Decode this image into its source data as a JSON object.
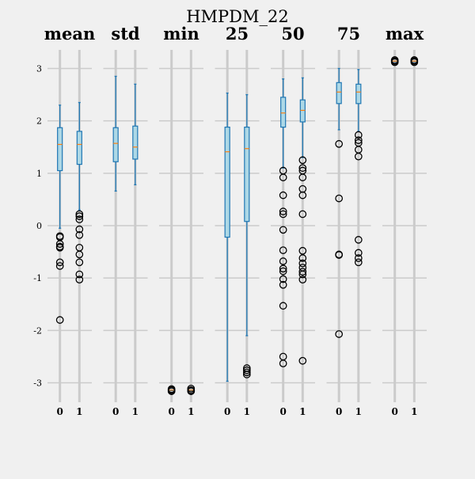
{
  "chart_data": {
    "type": "box",
    "title": "HMPDM_22",
    "ylim": [
      -3.4,
      3.4
    ],
    "yticks": [
      -3,
      -2,
      -1,
      0,
      1,
      2,
      3
    ],
    "grid": true,
    "colors": {
      "background": "#f0f0f0",
      "grid": "#cbcbcb",
      "box_fill": "#add8e6",
      "box_edge": "#1f77b4",
      "median": "#ff7f0e",
      "outlier": "#000000"
    },
    "panels": [
      {
        "name": "mean",
        "groups": [
          {
            "label": "0",
            "whislo": -0.05,
            "q1": 1.05,
            "med": 1.55,
            "q3": 1.87,
            "whishi": 2.3,
            "fliers": [
              -0.2,
              -0.22,
              -0.35,
              -0.4,
              -0.42,
              -0.7,
              -0.77,
              -1.8
            ]
          },
          {
            "label": "1",
            "whislo": 0.3,
            "q1": 1.17,
            "med": 1.55,
            "q3": 1.8,
            "whishi": 2.35,
            "fliers": [
              0.22,
              0.18,
              0.12,
              -0.07,
              -0.18,
              -0.42,
              -0.55,
              -0.7,
              -0.93,
              -1.03
            ]
          }
        ]
      },
      {
        "name": "std",
        "groups": [
          {
            "label": "0",
            "whislo": 0.66,
            "q1": 1.22,
            "med": 1.57,
            "q3": 1.87,
            "whishi": 2.85,
            "fliers": []
          },
          {
            "label": "1",
            "whislo": 0.78,
            "q1": 1.27,
            "med": 1.5,
            "q3": 1.9,
            "whishi": 2.7,
            "fliers": []
          }
        ]
      },
      {
        "name": "min",
        "groups": [
          {
            "label": "0",
            "whislo": -3.14,
            "q1": -3.14,
            "med": -3.14,
            "q3": -3.14,
            "whishi": -3.14,
            "fliers": [
              -3.12,
              -3.14,
              -3.16
            ]
          },
          {
            "label": "1",
            "whislo": -3.14,
            "q1": -3.14,
            "med": -3.14,
            "q3": -3.14,
            "whishi": -3.14,
            "fliers": [
              -3.11,
              -3.14,
              -3.16
            ]
          }
        ]
      },
      {
        "name": "25",
        "groups": [
          {
            "label": "0",
            "whislo": -2.97,
            "q1": -0.22,
            "med": 1.41,
            "q3": 1.88,
            "whishi": 2.53,
            "fliers": []
          },
          {
            "label": "1",
            "whislo": -2.1,
            "q1": 0.08,
            "med": 1.47,
            "q3": 1.88,
            "whishi": 2.5,
            "fliers": [
              -2.72,
              -2.76,
              -2.8,
              -2.84
            ]
          }
        ]
      },
      {
        "name": "50",
        "groups": [
          {
            "label": "0",
            "whislo": 1.1,
            "q1": 1.88,
            "med": 2.15,
            "q3": 2.45,
            "whishi": 2.8,
            "fliers": [
              1.05,
              0.92,
              0.58,
              0.27,
              0.22,
              -0.08,
              -0.47,
              -0.68,
              -0.82,
              -0.87,
              -1.02,
              -1.13,
              -1.53,
              -2.5,
              -2.63
            ]
          },
          {
            "label": "1",
            "whislo": 1.3,
            "q1": 1.98,
            "med": 2.2,
            "q3": 2.4,
            "whishi": 2.82,
            "fliers": [
              1.25,
              1.1,
              1.05,
              0.92,
              0.7,
              0.58,
              0.22,
              -0.48,
              -0.62,
              -0.72,
              -0.8,
              -0.88,
              -0.93,
              -1.03,
              -2.58
            ]
          }
        ]
      },
      {
        "name": "75",
        "groups": [
          {
            "label": "0",
            "whislo": 1.83,
            "q1": 2.33,
            "med": 2.55,
            "q3": 2.73,
            "whishi": 3.0,
            "fliers": [
              1.56,
              0.52,
              -0.55,
              -0.56,
              -2.07
            ]
          },
          {
            "label": "1",
            "whislo": 1.8,
            "q1": 2.33,
            "med": 2.55,
            "q3": 2.7,
            "whishi": 2.98,
            "fliers": [
              1.73,
              1.63,
              1.58,
              1.45,
              1.32,
              -0.27,
              -0.52,
              -0.62,
              -0.7
            ]
          }
        ]
      },
      {
        "name": "max",
        "groups": [
          {
            "label": "0",
            "whislo": 3.14,
            "q1": 3.14,
            "med": 3.14,
            "q3": 3.14,
            "whishi": 3.14,
            "fliers": [
              3.12,
              3.14,
              3.16
            ]
          },
          {
            "label": "1",
            "whislo": 3.14,
            "q1": 3.14,
            "med": 3.14,
            "q3": 3.14,
            "whishi": 3.14,
            "fliers": [
              3.12,
              3.14,
              3.16
            ]
          }
        ]
      }
    ]
  }
}
